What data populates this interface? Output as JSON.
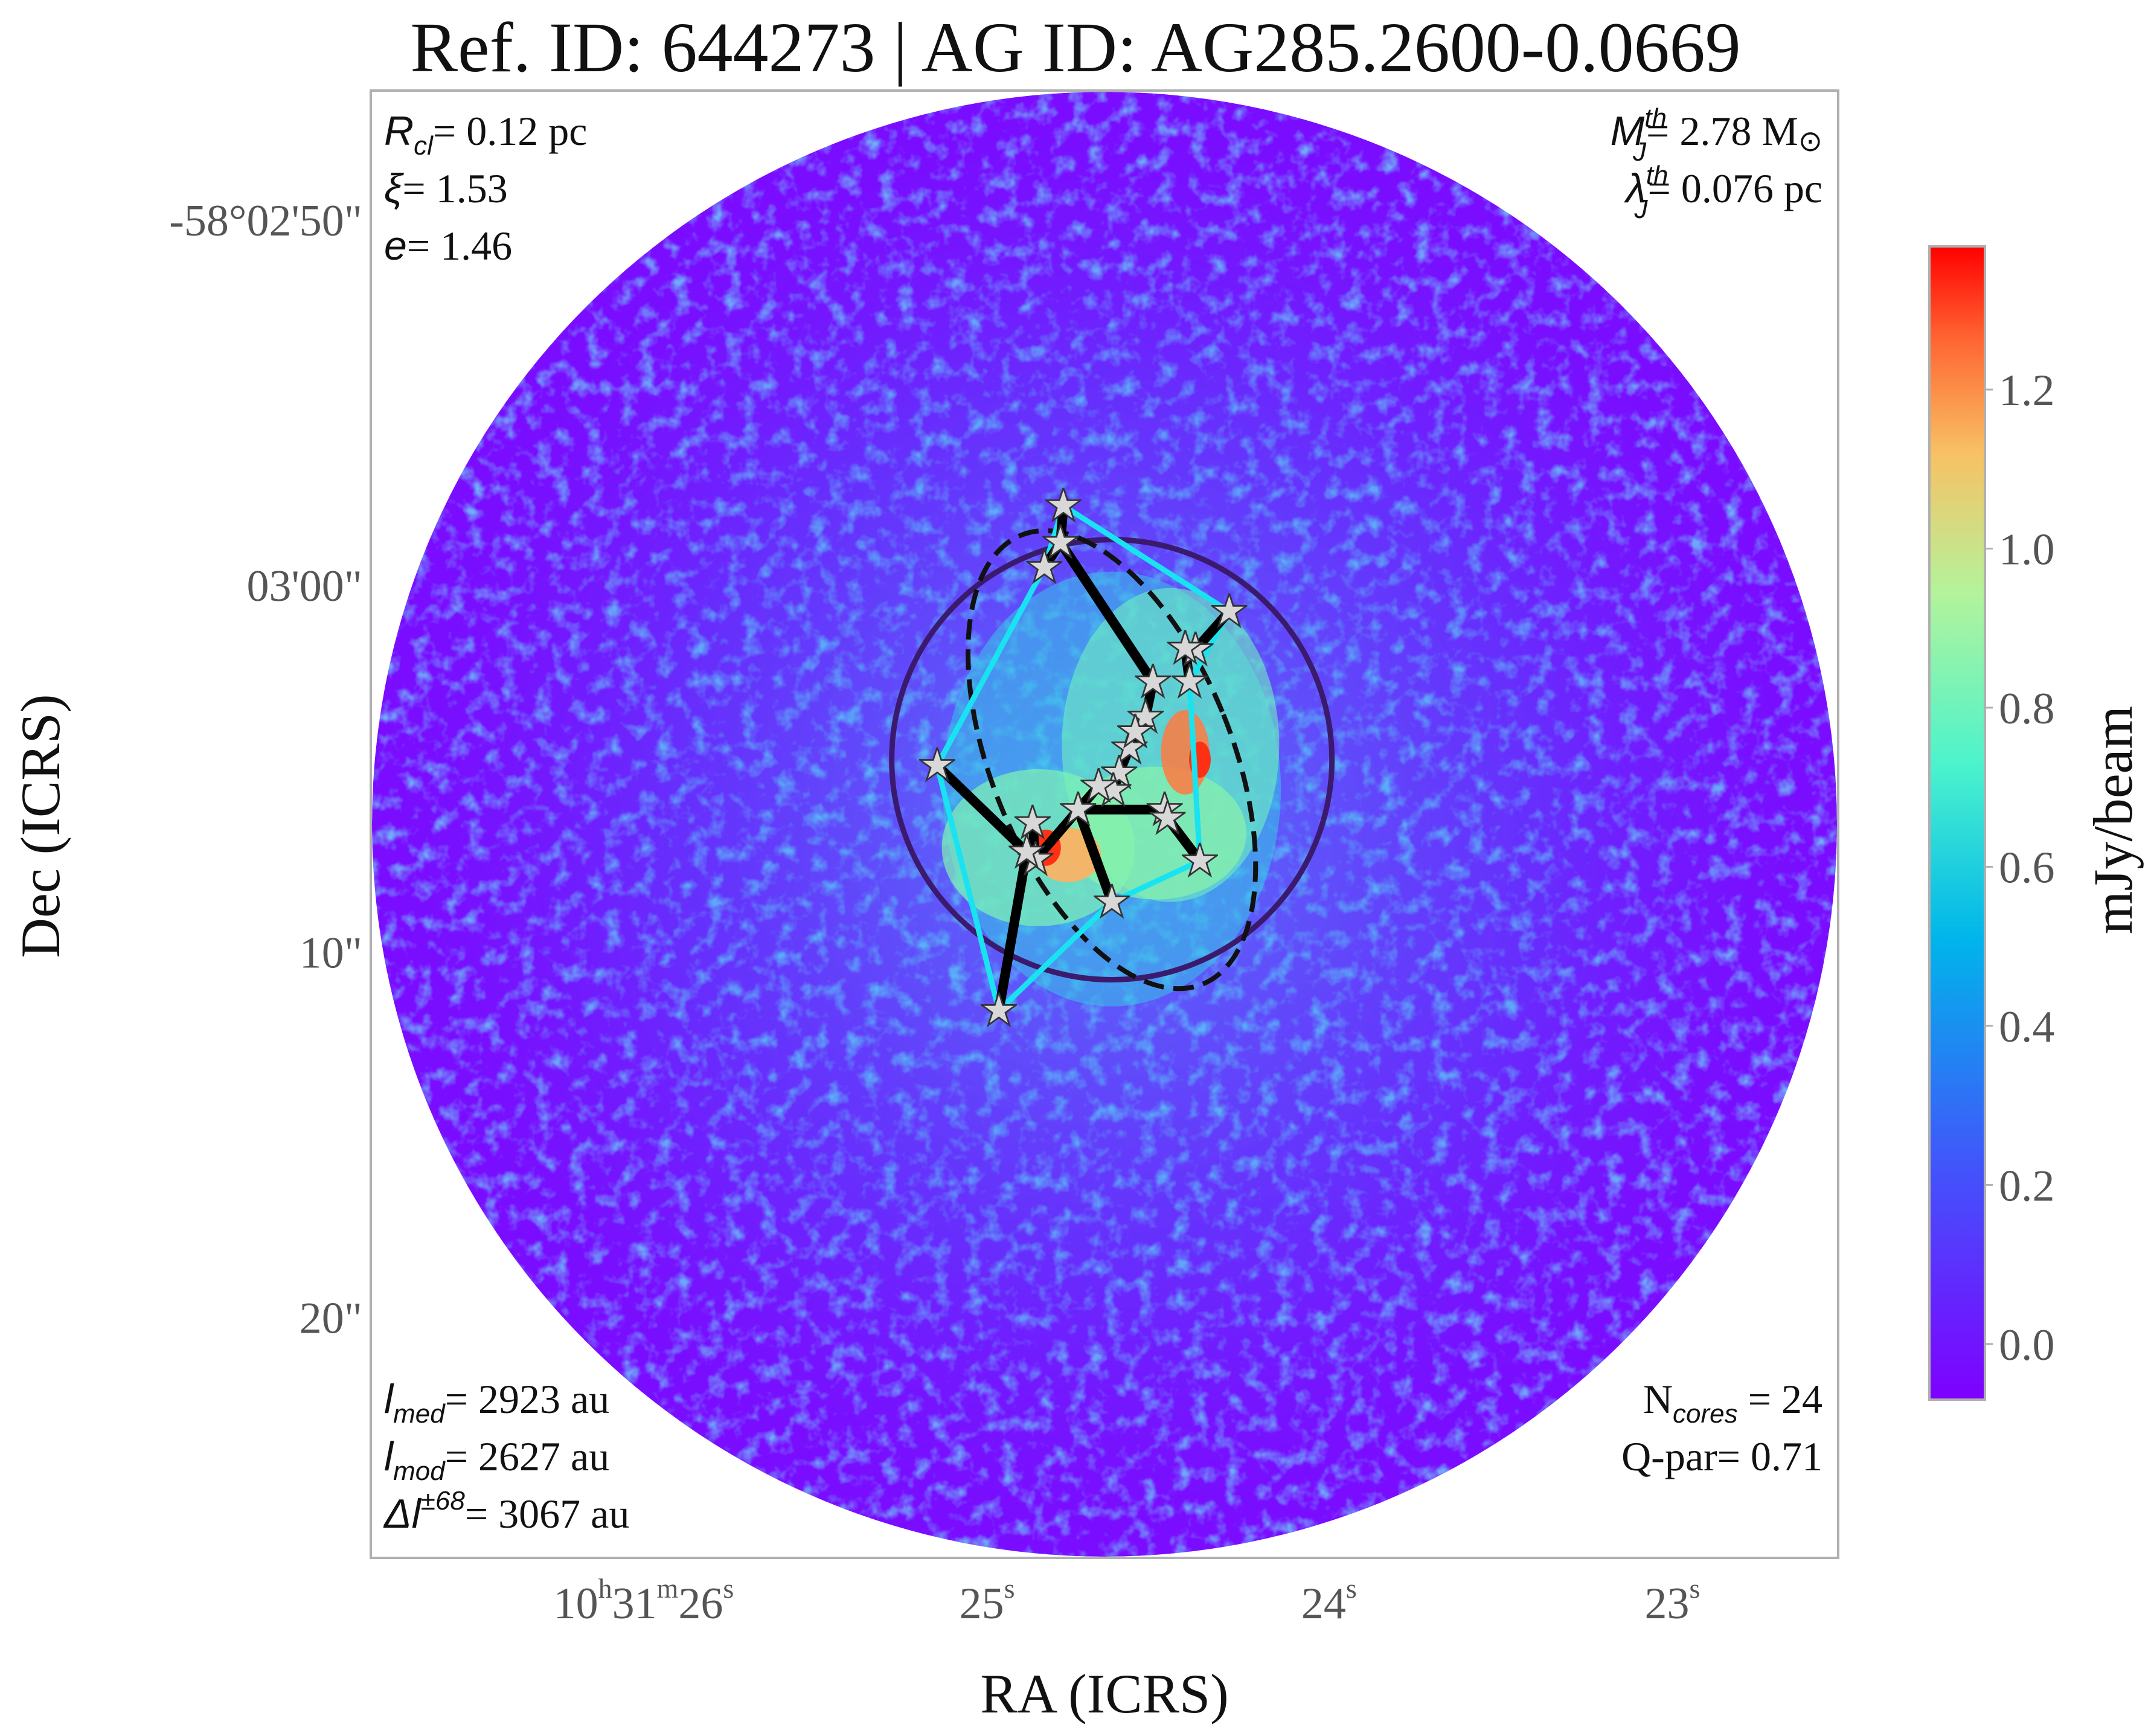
{
  "chart_data": {
    "type": "heatmap",
    "title": "Ref. ID: 644273 | AG ID: AG285.2600-0.0669",
    "xlabel": "RA (ICRS)",
    "ylabel": "Dec (ICRS)",
    "x_ticks": [
      {
        "h": "10",
        "m": "31",
        "s": "26",
        "full": true
      },
      {
        "s": "25",
        "full": false
      },
      {
        "s": "24",
        "full": false
      },
      {
        "s": "23",
        "full": false
      }
    ],
    "y_ticks": [
      "-58°02'50\"",
      "03'00\"",
      "10\"",
      "20\""
    ],
    "colorbar": {
      "label": "mJy/beam",
      "range": [
        -0.07,
        1.38
      ],
      "ticks": [
        0.0,
        0.2,
        0.4,
        0.6,
        0.8,
        1.0,
        1.2
      ],
      "tick_labels": [
        "0.0",
        "0.2",
        "0.4",
        "0.6",
        "0.8",
        "1.0",
        "1.2"
      ],
      "colormap": "rainbow"
    },
    "annotations_top_left": [
      {
        "sym": "R",
        "sub": "cl",
        "sup": "",
        "val": "= 0.12 pc"
      },
      {
        "sym": "ξ",
        "sub": "",
        "sup": "",
        "val": "= 1.53"
      },
      {
        "sym": "e",
        "sub": "",
        "sup": "",
        "val": "= 1.46"
      }
    ],
    "annotations_top_right": [
      {
        "sym": "M",
        "sub": "J",
        "sup": "th",
        "val": "= 2.78 M",
        "tail": "⊙"
      },
      {
        "sym": "λ",
        "sub": "J",
        "sup": "th",
        "val": "= 0.076 pc",
        "tail": ""
      }
    ],
    "annotations_bottom_left": [
      {
        "sym": "l",
        "sub": "med",
        "sup": "",
        "val": "= 2923 au"
      },
      {
        "sym": "l",
        "sub": "mod",
        "sup": "",
        "val": "= 2627 au"
      },
      {
        "sym": "Δl",
        "sub": "",
        "sup": "±68",
        "val": "= 3067 au"
      }
    ],
    "annotations_bottom_right": [
      {
        "text": "N",
        "sub": "cores",
        "val": " = 24"
      },
      {
        "text": "Q-par",
        "sub": "",
        "val": "= 0.71"
      }
    ],
    "n_cores": 24,
    "q_par": 0.71,
    "cores": [
      [
        0.472,
        0.283
      ],
      [
        0.47,
        0.308
      ],
      [
        0.459,
        0.325
      ],
      [
        0.585,
        0.355
      ],
      [
        0.562,
        0.381
      ],
      [
        0.555,
        0.38
      ],
      [
        0.558,
        0.403
      ],
      [
        0.533,
        0.403
      ],
      [
        0.528,
        0.427
      ],
      [
        0.517,
        0.448
      ],
      [
        0.521,
        0.437
      ],
      [
        0.51,
        0.465
      ],
      [
        0.506,
        0.477
      ],
      [
        0.496,
        0.474
      ],
      [
        0.482,
        0.49
      ],
      [
        0.541,
        0.49
      ],
      [
        0.543,
        0.496
      ],
      [
        0.565,
        0.525
      ],
      [
        0.505,
        0.553
      ],
      [
        0.453,
        0.524
      ],
      [
        0.451,
        0.499
      ],
      [
        0.447,
        0.519
      ],
      [
        0.386,
        0.46
      ],
      [
        0.428,
        0.627
      ]
    ],
    "mst_edges": [
      [
        0,
        1
      ],
      [
        1,
        2
      ],
      [
        1,
        7
      ],
      [
        7,
        8
      ],
      [
        8,
        9
      ],
      [
        3,
        4
      ],
      [
        4,
        5
      ],
      [
        5,
        6
      ],
      [
        9,
        10
      ],
      [
        9,
        11
      ],
      [
        11,
        12
      ],
      [
        12,
        13
      ],
      [
        13,
        14
      ],
      [
        14,
        15
      ],
      [
        15,
        16
      ],
      [
        13,
        19
      ],
      [
        19,
        20
      ],
      [
        19,
        21
      ],
      [
        22,
        21
      ],
      [
        21,
        23
      ],
      [
        14,
        18
      ],
      [
        16,
        17
      ]
    ],
    "hull": [
      0,
      3,
      6,
      17,
      18,
      23,
      22,
      2
    ],
    "ellipse": {
      "cx": 0.505,
      "cy": 0.456,
      "rx": 0.082,
      "ry": 0.165,
      "angle_deg": -22
    },
    "cluster_circle": {
      "cx": 0.505,
      "cy": 0.456,
      "r": 0.15
    }
  }
}
